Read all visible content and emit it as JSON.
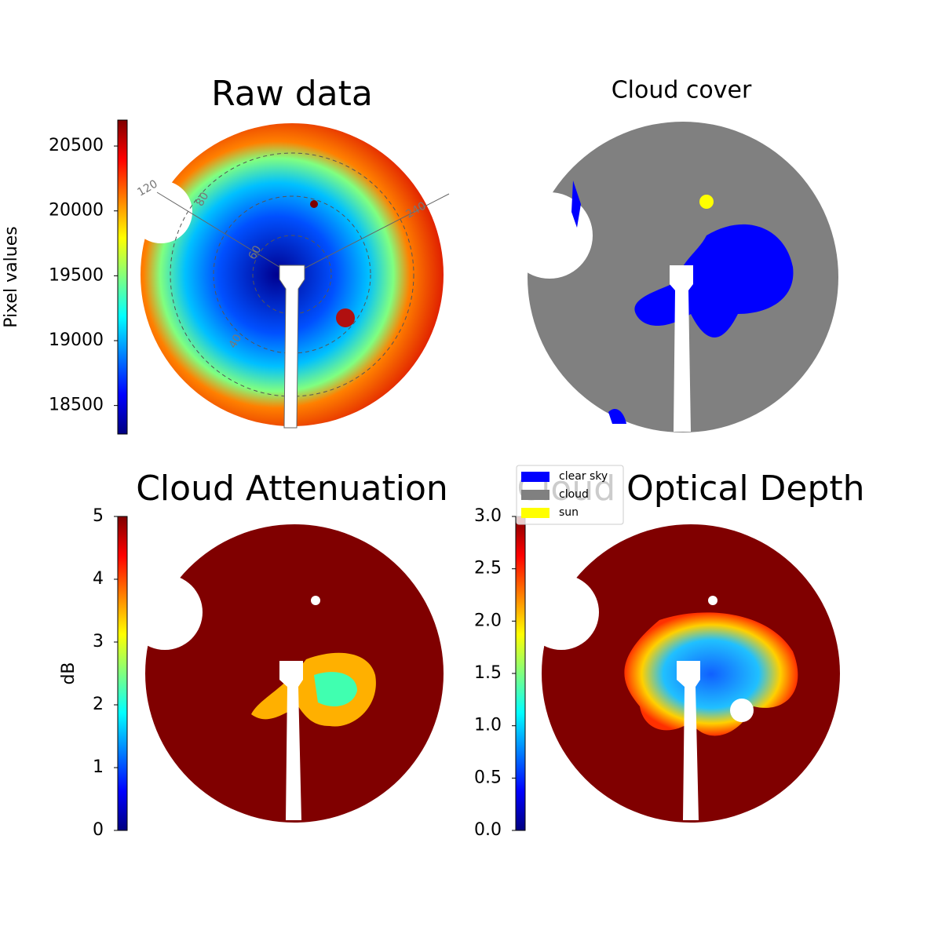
{
  "chart_data": [
    {
      "type": "image",
      "title": "Raw data",
      "colorbar": {
        "label": "Pixel values",
        "colormap": "jet",
        "ylim": [
          18280,
          20700
        ],
        "yticks": [
          18500,
          19000,
          19500,
          20000,
          20500
        ]
      },
      "annotations": [
        "120",
        "80",
        "60",
        "40",
        "240"
      ]
    },
    {
      "type": "image",
      "title": "Cloud cover",
      "legend": [
        {
          "name": "clear sky",
          "color": "#0000ff"
        },
        {
          "name": "cloud",
          "color": "#808080"
        },
        {
          "name": "sun",
          "color": "#ffff00"
        }
      ]
    },
    {
      "type": "image",
      "title": "Cloud Attenuation",
      "colorbar": {
        "label": "dB",
        "colormap": "jet",
        "ylim": [
          0,
          5
        ],
        "yticks": [
          0,
          1,
          2,
          3,
          4,
          5
        ]
      }
    },
    {
      "type": "image",
      "title": "Cloud Optical Depth",
      "colorbar": {
        "colormap": "jet",
        "ylim": [
          0,
          3
        ],
        "yticks": [
          {
            "value": 0,
            "label": "0.0"
          },
          {
            "value": 0.5,
            "label": "0.5"
          },
          {
            "value": 1,
            "label": "1.0"
          },
          {
            "value": 1.5,
            "label": "1.5"
          },
          {
            "value": 2,
            "label": "2.0"
          },
          {
            "value": 2.5,
            "label": "2.5"
          },
          {
            "value": 3,
            "label": "3.0"
          }
        ]
      }
    }
  ]
}
